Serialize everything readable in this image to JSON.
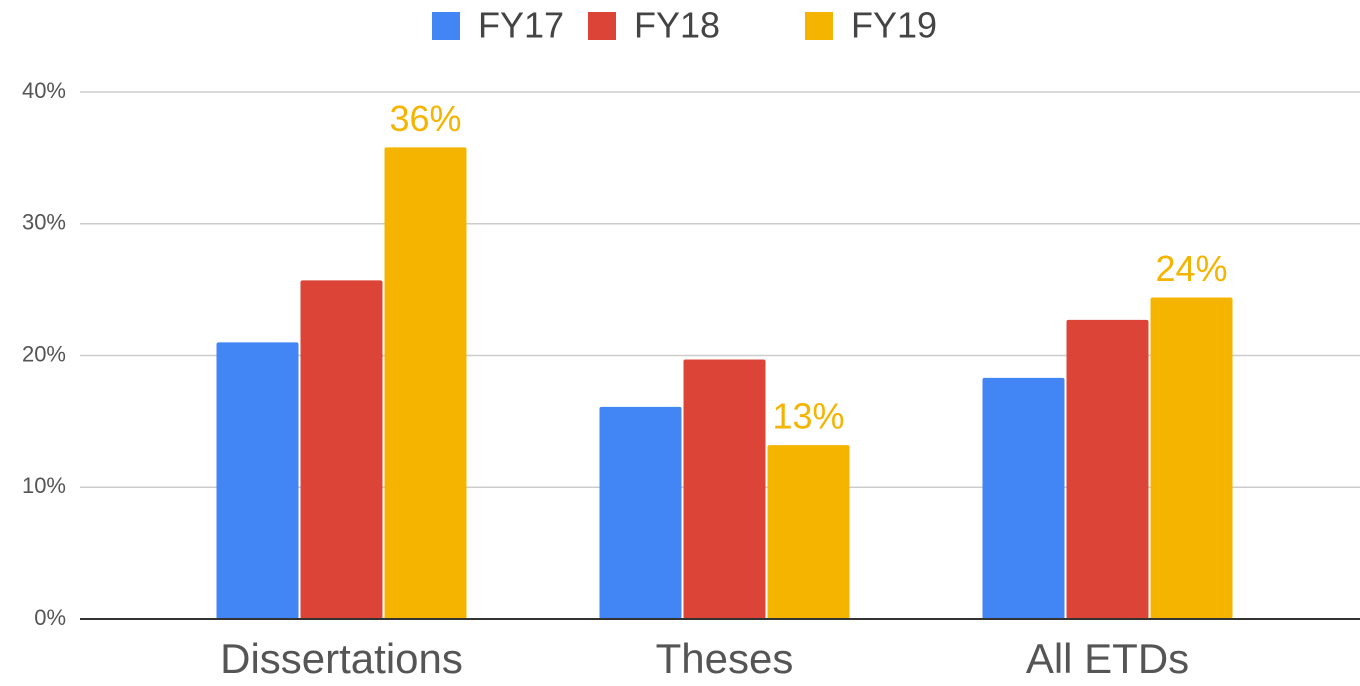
{
  "chart_data": {
    "type": "bar",
    "categories": [
      "Dissertations",
      "Theses",
      "All ETDs"
    ],
    "series": [
      {
        "name": "FY17",
        "color": "#4285f4",
        "values": [
          21.0,
          16.1,
          18.3
        ]
      },
      {
        "name": "FY18",
        "color": "#db4437",
        "values": [
          25.7,
          19.7,
          22.7
        ]
      },
      {
        "name": "FY19",
        "color": "#f4b400",
        "values": [
          35.8,
          13.2,
          24.4
        ],
        "value_labels": [
          "36%",
          "13%",
          "24%"
        ]
      }
    ],
    "ylim": [
      0,
      40
    ],
    "yticks": [
      {
        "value": 0,
        "label": "0%"
      },
      {
        "value": 10,
        "label": "10%"
      },
      {
        "value": 20,
        "label": "20%"
      },
      {
        "value": 30,
        "label": "30%"
      },
      {
        "value": 40,
        "label": "40%"
      }
    ],
    "grid": true,
    "legend": "top"
  }
}
